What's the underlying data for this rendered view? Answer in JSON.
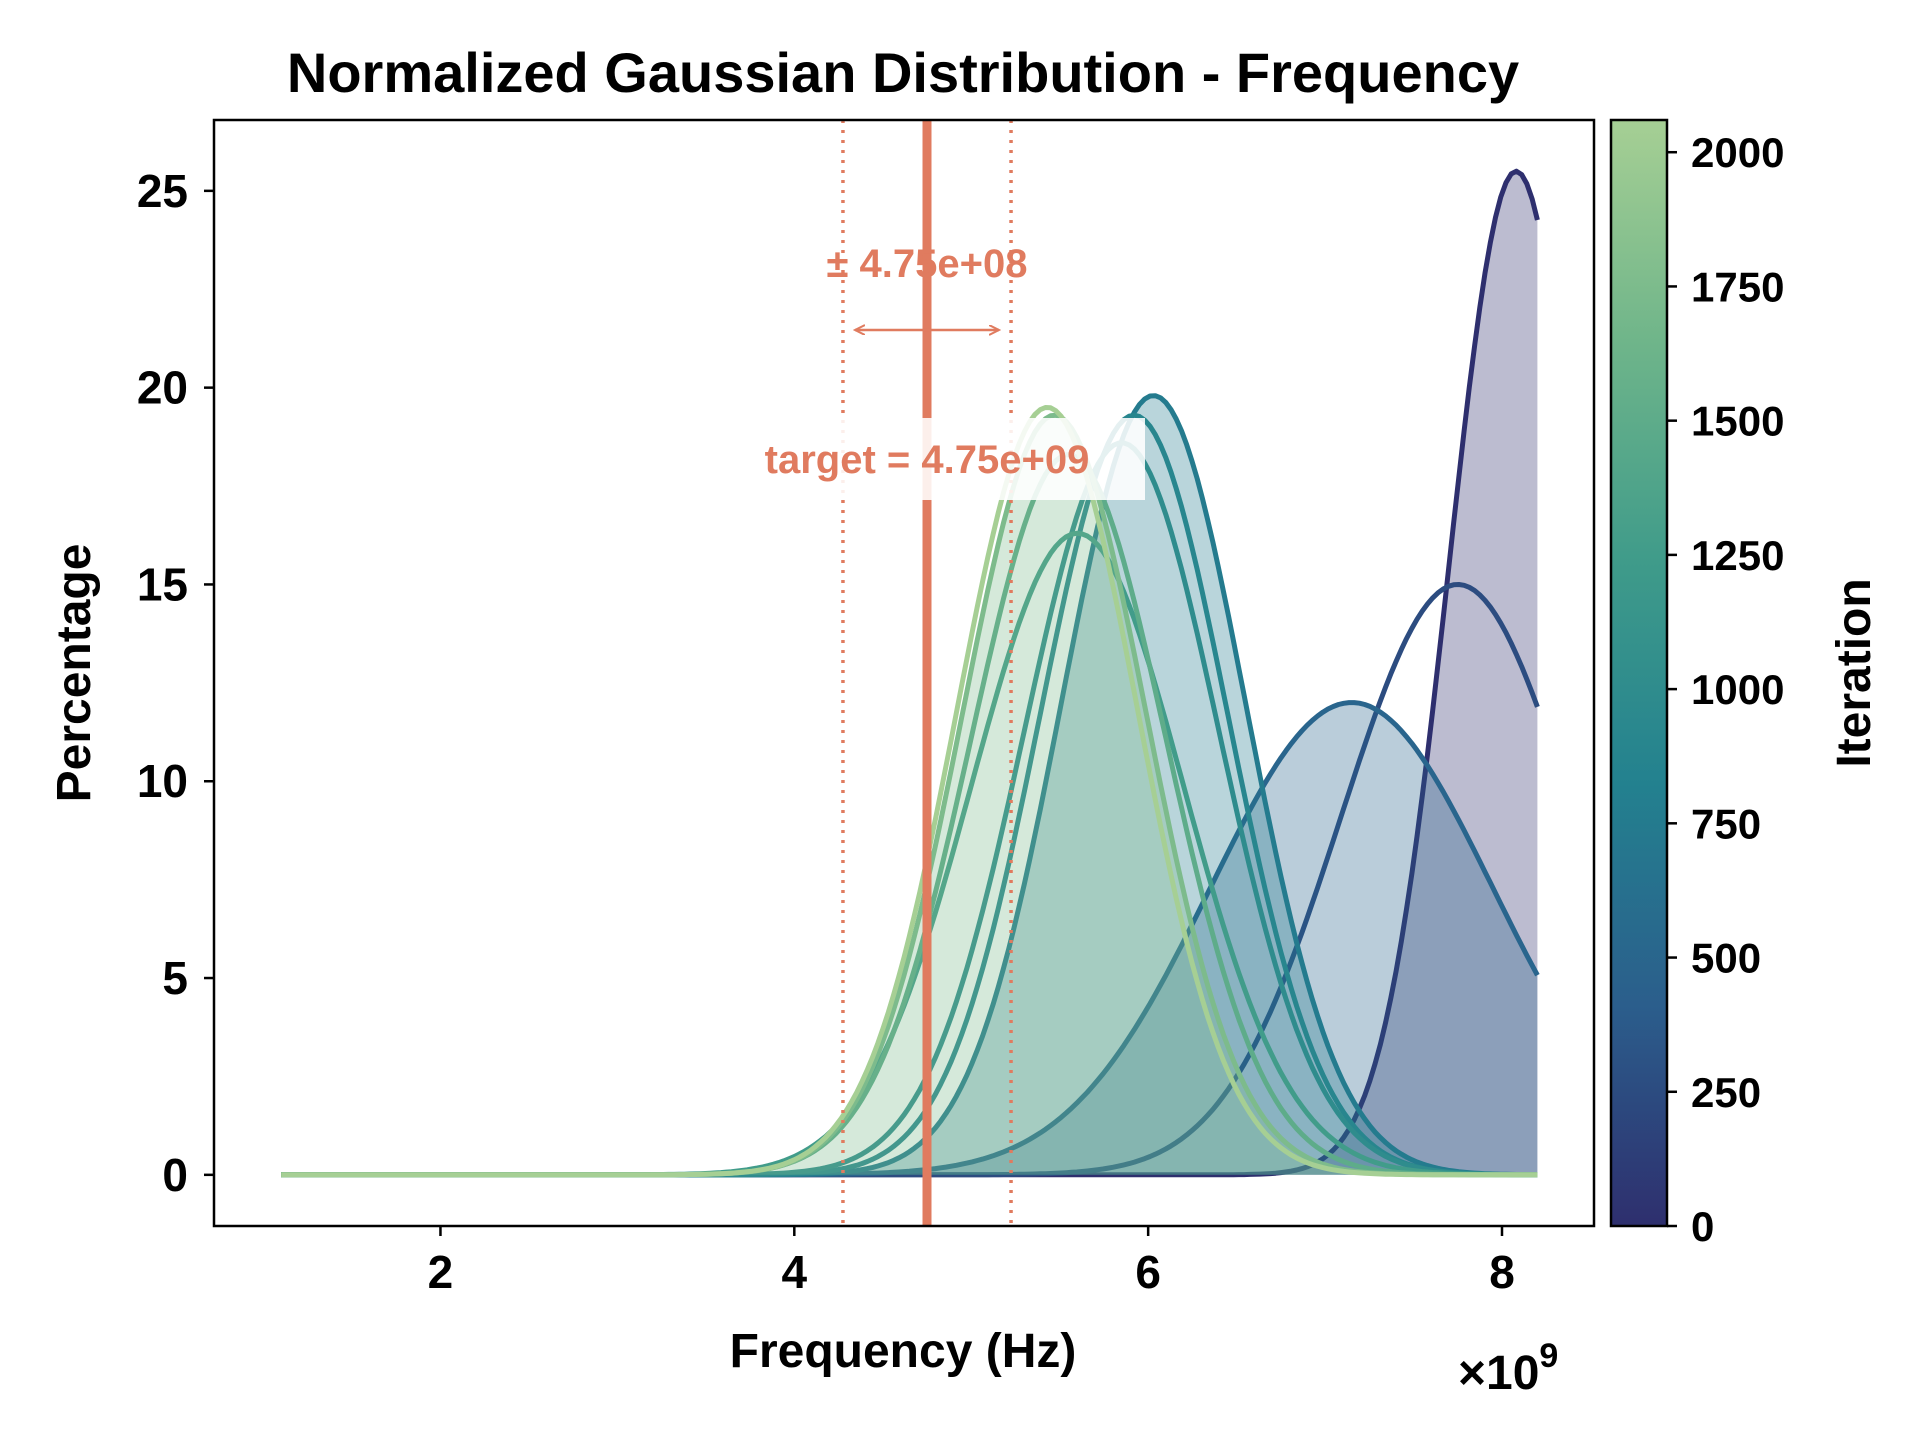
{
  "chart_data": {
    "type": "line",
    "title": "Normalized Gaussian Distribution - Frequency",
    "xlabel": "Frequency  (Hz)",
    "ylabel": "Percentage",
    "x_multiplier_label": "×10",
    "x_multiplier_exponent": "9",
    "xlim": [
      0.72,
      8.52
    ],
    "ylim": [
      -1.3,
      26.8
    ],
    "x_range": [
      1.1,
      8.2
    ],
    "xticks": [
      2,
      4,
      6,
      8
    ],
    "yticks": [
      0,
      5,
      10,
      15,
      20,
      25
    ],
    "grid": false,
    "target": {
      "value": 4.75,
      "tolerance": 0.475,
      "label": "target = 4.75e+09",
      "tolerance_label": "± 4.75e+08",
      "color": "#e07b5f"
    },
    "colorbar": {
      "label": "Iteration",
      "range": [
        0,
        2060
      ],
      "ticks": [
        0,
        250,
        500,
        750,
        1000,
        1250,
        1500,
        1750,
        2000
      ],
      "colormap": [
        "#2e2f6e",
        "#2b5e8c",
        "#23818f",
        "#3f9b8a",
        "#6fb58a",
        "#a6cf94"
      ]
    },
    "series": [
      {
        "name": "iteration 0",
        "iteration": 0,
        "mu": 8.08,
        "sigma": 0.38,
        "peak": 25.5,
        "filled": true
      },
      {
        "name": "iteration 250",
        "iteration": 250,
        "mu": 7.75,
        "sigma": 0.66,
        "peak": 15.0,
        "filled": false
      },
      {
        "name": "iteration 500",
        "iteration": 500,
        "mu": 7.15,
        "sigma": 0.8,
        "peak": 12.0,
        "filled": true
      },
      {
        "name": "iteration 750",
        "iteration": 750,
        "mu": 6.03,
        "sigma": 0.52,
        "peak": 19.8,
        "filled": true
      },
      {
        "name": "iteration 900",
        "iteration": 900,
        "mu": 5.92,
        "sigma": 0.53,
        "peak": 19.3,
        "filled": false
      },
      {
        "name": "iteration 1000",
        "iteration": 1000,
        "mu": 5.85,
        "sigma": 0.55,
        "peak": 18.6,
        "filled": false
      },
      {
        "name": "iteration 1250",
        "iteration": 1250,
        "mu": 5.6,
        "sigma": 0.6,
        "peak": 16.3,
        "filled": false
      },
      {
        "name": "iteration 1500",
        "iteration": 1500,
        "mu": 5.55,
        "sigma": 0.55,
        "peak": 18.3,
        "filled": false
      },
      {
        "name": "iteration 1750",
        "iteration": 1750,
        "mu": 5.47,
        "sigma": 0.52,
        "peak": 19.3,
        "filled": true
      },
      {
        "name": "iteration 2060",
        "iteration": 2060,
        "mu": 5.43,
        "sigma": 0.51,
        "peak": 19.5,
        "filled": false
      }
    ]
  }
}
